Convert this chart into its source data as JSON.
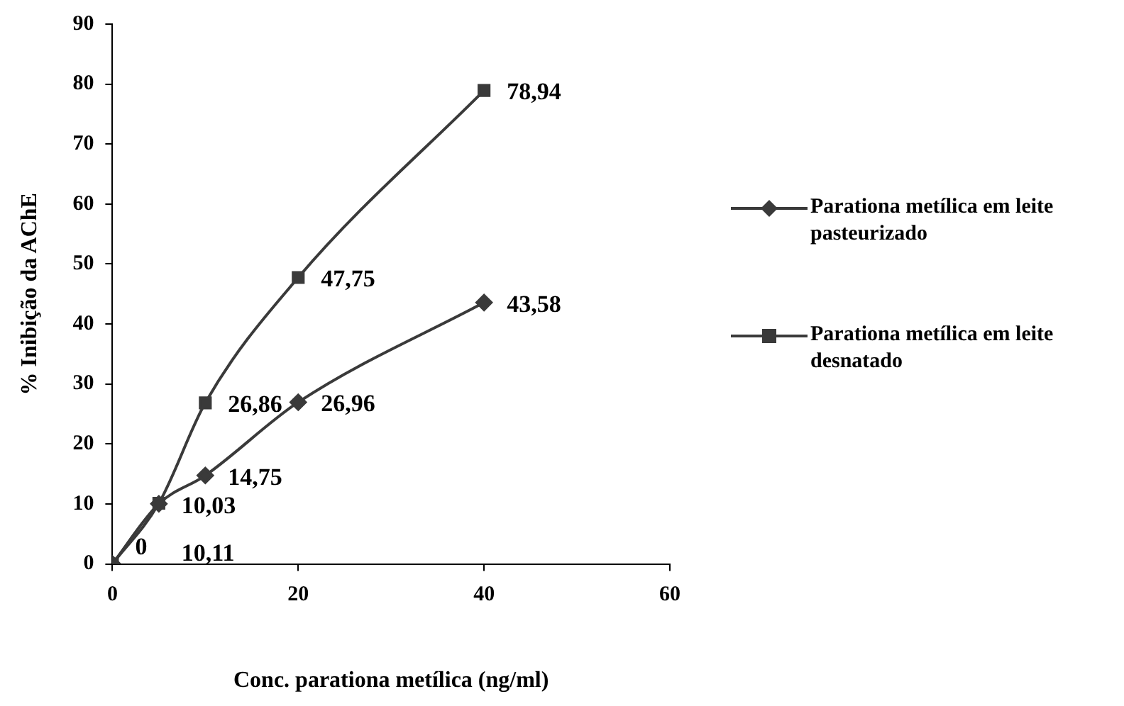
{
  "chart_data": {
    "type": "line",
    "xlabel": "Conc. parationa metílica (ng/ml)",
    "ylabel": "% Inibição da AChE",
    "x": [
      0,
      5,
      10,
      20,
      40
    ],
    "series": [
      {
        "name": "Parationa metílica em leite pasteurizado",
        "color": "#3a3a3a",
        "marker": "diamond",
        "values": [
          0,
          10.03,
          14.75,
          26.96,
          43.58
        ],
        "value_labels": [
          "0",
          "10,03",
          "14,75",
          "26,96",
          "43,58"
        ]
      },
      {
        "name": "Parationa metílica em leite desnatado",
        "color": "#3a3a3a",
        "marker": "square",
        "values": [
          0,
          10.11,
          26.86,
          47.75,
          78.94
        ],
        "value_labels": [
          null,
          "10,11",
          "26,86",
          "47,75",
          "78,94"
        ]
      }
    ],
    "xlim": [
      0,
      60
    ],
    "xticks": [
      0,
      20,
      40,
      60
    ],
    "ylim": [
      0,
      90
    ],
    "yticks": [
      0,
      10,
      20,
      30,
      40,
      50,
      60,
      70,
      80,
      90
    ],
    "grid": false,
    "legend": "right",
    "line_style": "solid"
  }
}
